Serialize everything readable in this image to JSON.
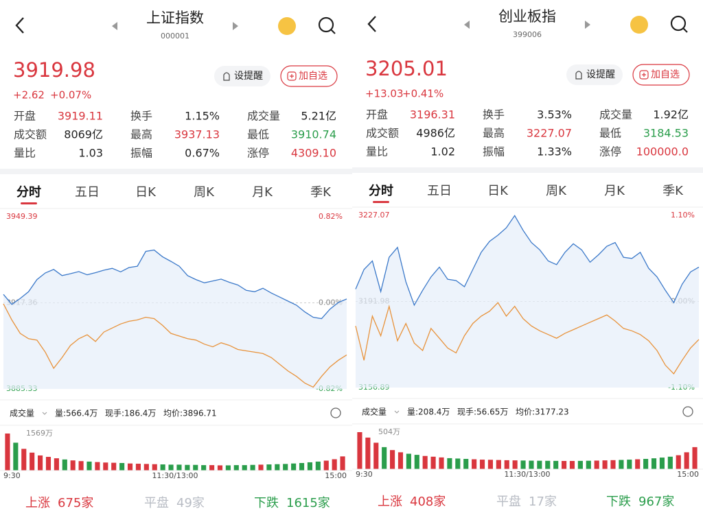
{
  "panels": [
    {
      "header": {
        "title": "上证指数",
        "code": "000001"
      },
      "quote": {
        "price": "3919.98",
        "change": "+2.62",
        "change_pct": "+0.07%"
      },
      "alert_button": "设提醒",
      "watch_button": "加自选",
      "stats": [
        [
          {
            "label": "开盘",
            "value": "3919.11",
            "color": "#d9363e"
          },
          {
            "label": "换手",
            "value": "1.15%",
            "color": "#222222"
          },
          {
            "label": "成交量",
            "value": "5.21亿",
            "color": "#222222"
          }
        ],
        [
          {
            "label": "成交额",
            "value": "8069亿",
            "color": "#222222"
          },
          {
            "label": "最高",
            "value": "3937.13",
            "color": "#d9363e"
          },
          {
            "label": "最低",
            "value": "3910.74",
            "color": "#2a9d4b"
          }
        ],
        [
          {
            "label": "量比",
            "value": "1.03",
            "color": "#222222"
          },
          {
            "label": "振幅",
            "value": "0.67%",
            "color": "#222222"
          },
          {
            "label": "涨停",
            "value": "4309.10",
            "color": "#d9363e"
          }
        ]
      ],
      "tabs": [
        "分时",
        "五日",
        "日K",
        "周K",
        "月K",
        "季K"
      ],
      "chart": {
        "ylim": [
          3885.33,
          3949.39
        ],
        "yticks": [
          3949.39,
          3917.36,
          3885.33
        ],
        "y2lim": [
          -0.82,
          0.82
        ],
        "y2ticks": [
          {
            "value": 0.82,
            "label": "0.82%"
          },
          {
            "value": 0,
            "label": "0.00%"
          },
          {
            "value": -0.82,
            "label": "-0.82%"
          }
        ],
        "price": {
          "color": "#3a78c9",
          "values": [
            3920.5,
            3916.8,
            3919.0,
            3921.5,
            3926.0,
            3928.5,
            3929.8,
            3927.5,
            3928.2,
            3929.0,
            3927.8,
            3928.6,
            3929.5,
            3930.2,
            3928.9,
            3930.5,
            3931.0,
            3936.5,
            3937.0,
            3934.5,
            3932.8,
            3931.0,
            3927.5,
            3926.0,
            3924.8,
            3925.5,
            3926.2,
            3925.0,
            3924.0,
            3922.0,
            3921.5,
            3922.8,
            3921.0,
            3919.5,
            3918.0,
            3916.5,
            3914.0,
            3912.0,
            3911.5,
            3915.0,
            3917.5,
            3918.8
          ]
        },
        "avg": {
          "color": "#e8923a",
          "values": [
            3917.0,
            3911.0,
            3906.0,
            3904.0,
            3903.5,
            3899.0,
            3893.0,
            3897.0,
            3901.5,
            3904.0,
            3905.5,
            3903.0,
            3906.5,
            3908.0,
            3909.5,
            3910.5,
            3911.0,
            3912.0,
            3911.5,
            3909.0,
            3906.0,
            3905.0,
            3904.0,
            3903.5,
            3902.0,
            3901.0,
            3902.5,
            3901.5,
            3900.0,
            3899.5,
            3899.0,
            3898.5,
            3897.0,
            3894.5,
            3892.0,
            3890.0,
            3887.5,
            3886.0,
            3890.0,
            3893.5,
            3896.0,
            3898.0
          ]
        }
      },
      "volume": {
        "label": "成交量",
        "amount": "量:566.4万",
        "hand": "现手:186.4万",
        "avg_price": "均价:3896.71",
        "ylim": [
          0,
          1569
        ],
        "max_tick": {
          "value": 1569,
          "label": "1569万"
        },
        "values": [
          1569,
          1180,
          920,
          760,
          640,
          580,
          520,
          470,
          430,
          400,
          380,
          360,
          340,
          330,
          320,
          300,
          290,
          280,
          270,
          260,
          250,
          250,
          240,
          240,
          230,
          230,
          220,
          220,
          230,
          230,
          240,
          250,
          260,
          270,
          280,
          300,
          320,
          350,
          380,
          420,
          480,
          600
        ]
      },
      "times": [
        "9:30",
        "11:30/13:00",
        "15:00"
      ],
      "breadth": [
        {
          "label": "上涨",
          "value": "675家",
          "color": "#d9363e"
        },
        {
          "label": "平盘",
          "value": "49家",
          "color": "#b8bcc4"
        },
        {
          "label": "下跌",
          "value": "1615家",
          "color": "#2a9d4b"
        }
      ]
    },
    {
      "header": {
        "title": "创业板指",
        "code": "399006"
      },
      "quote": {
        "price": "3205.01",
        "change": "+13.03",
        "change_pct": "+0.41%"
      },
      "alert_button": "设提醒",
      "watch_button": "加自选",
      "stats": [
        [
          {
            "label": "开盘",
            "value": "3196.31",
            "color": "#d9363e"
          },
          {
            "label": "换手",
            "value": "3.53%",
            "color": "#222222"
          },
          {
            "label": "成交量",
            "value": "1.92亿",
            "color": "#222222"
          }
        ],
        [
          {
            "label": "成交额",
            "value": "4986亿",
            "color": "#222222"
          },
          {
            "label": "最高",
            "value": "3227.07",
            "color": "#d9363e"
          },
          {
            "label": "最低",
            "value": "3184.53",
            "color": "#2a9d4b"
          }
        ],
        [
          {
            "label": "量比",
            "value": "1.02",
            "color": "#222222"
          },
          {
            "label": "振幅",
            "value": "1.33%",
            "color": "#222222"
          },
          {
            "label": "涨停",
            "value": "100000.0",
            "color": "#d9363e"
          }
        ]
      ],
      "tabs": [
        "分时",
        "五日",
        "日K",
        "周K",
        "月K",
        "季K"
      ],
      "chart": {
        "ylim": [
          3156.89,
          3227.07
        ],
        "yticks": [
          3227.07,
          3191.98,
          3156.89
        ],
        "y2lim": [
          -1.1,
          1.1
        ],
        "y2ticks": [
          {
            "value": 1.1,
            "label": "1.10%"
          },
          {
            "value": 0,
            "label": "0.00%"
          },
          {
            "value": -1.1,
            "label": "-1.10%"
          }
        ],
        "price": {
          "color": "#3a78c9",
          "values": [
            3197.0,
            3205.0,
            3208.5,
            3196.0,
            3210.0,
            3214.0,
            3200.0,
            3190.5,
            3196.5,
            3202.0,
            3206.0,
            3201.0,
            3200.5,
            3198.0,
            3205.0,
            3212.0,
            3216.5,
            3219.0,
            3222.0,
            3227.0,
            3221.0,
            3216.0,
            3213.0,
            3208.5,
            3207.0,
            3212.0,
            3215.5,
            3213.0,
            3208.0,
            3211.0,
            3214.5,
            3216.0,
            3210.0,
            3209.5,
            3212.0,
            3205.5,
            3202.0,
            3196.5,
            3191.5,
            3199.0,
            3204.0,
            3206.0
          ]
        },
        "avg": {
          "color": "#e8923a",
          "values": [
            3182.0,
            3168.0,
            3186.0,
            3178.0,
            3190.0,
            3176.0,
            3183.0,
            3175.0,
            3172.0,
            3181.0,
            3177.0,
            3173.0,
            3171.0,
            3178.0,
            3183.0,
            3186.0,
            3188.0,
            3191.5,
            3186.0,
            3190.0,
            3185.0,
            3182.0,
            3180.0,
            3178.5,
            3177.0,
            3179.0,
            3180.5,
            3182.0,
            3183.5,
            3185.0,
            3186.5,
            3184.0,
            3181.0,
            3180.0,
            3178.5,
            3176.0,
            3172.0,
            3166.0,
            3162.5,
            3168.0,
            3173.0,
            3176.5
          ]
        }
      },
      "volume": {
        "label": "成交量",
        "amount": "量:208.4万",
        "hand": "现手:56.65万",
        "avg_price": "均价:3177.23",
        "ylim": [
          0,
          504
        ],
        "max_tick": {
          "value": 504,
          "label": "504万"
        },
        "values": [
          504,
          430,
          360,
          300,
          260,
          230,
          210,
          195,
          180,
          170,
          160,
          150,
          145,
          140,
          135,
          130,
          128,
          125,
          122,
          120,
          118,
          116,
          115,
          114,
          113,
          112,
          112,
          113,
          115,
          117,
          120,
          123,
          126,
          130,
          135,
          140,
          148,
          158,
          170,
          190,
          230,
          300
        ]
      },
      "times": [
        "9:30",
        "11:30/13:00",
        "15:00"
      ],
      "breadth": [
        {
          "label": "上涨",
          "value": "408家",
          "color": "#d9363e"
        },
        {
          "label": "平盘",
          "value": "17家",
          "color": "#b8bcc4"
        },
        {
          "label": "下跌",
          "value": "967家",
          "color": "#2a9d4b"
        }
      ]
    }
  ]
}
